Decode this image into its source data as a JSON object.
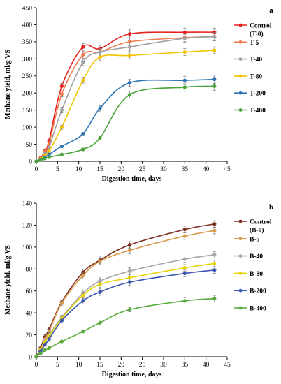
{
  "chart_data": [
    {
      "type": "line",
      "panel_label": "a",
      "xlabel": "Digestion time, days",
      "ylabel": "Methane yield, ml/g VS",
      "xlim": [
        0,
        45
      ],
      "ylim": [
        0,
        450
      ],
      "xticks": [
        0,
        5,
        10,
        15,
        20,
        25,
        30,
        35,
        40,
        45
      ],
      "yticks": [
        0,
        50,
        100,
        150,
        200,
        250,
        300,
        350,
        400,
        450
      ],
      "grid": false,
      "legend_position": "right",
      "series": [
        {
          "name": [
            "Control",
            "(T-0)"
          ],
          "color": "#e8221e",
          "x": [
            0,
            1,
            2,
            3,
            6,
            11,
            15,
            22,
            35,
            42
          ],
          "y": [
            0,
            10,
            30,
            60,
            220,
            335,
            330,
            373,
            378,
            378
          ],
          "err": [
            0,
            2,
            4,
            6,
            8,
            10,
            10,
            12,
            12,
            12
          ]
        },
        {
          "name": [
            "T-5"
          ],
          "color": "#f07a4e",
          "x": [
            0,
            1,
            2,
            3,
            6,
            11,
            15,
            22,
            35,
            42
          ],
          "y": [
            0,
            8,
            28,
            50,
            197,
            312,
            320,
            350,
            362,
            365
          ],
          "err": [
            0,
            2,
            4,
            6,
            8,
            10,
            10,
            12,
            12,
            12
          ]
        },
        {
          "name": [
            "T-40"
          ],
          "color": "#a0a0a0",
          "x": [
            0,
            1,
            2,
            3,
            6,
            11,
            15,
            22,
            35,
            42
          ],
          "y": [
            0,
            7,
            22,
            40,
            150,
            290,
            320,
            335,
            360,
            365
          ],
          "err": [
            0,
            2,
            4,
            5,
            8,
            10,
            10,
            12,
            12,
            12
          ]
        },
        {
          "name": [
            "T-80"
          ],
          "color": "#f5c200",
          "x": [
            0,
            1,
            2,
            3,
            6,
            11,
            15,
            22,
            35,
            42
          ],
          "y": [
            0,
            6,
            18,
            30,
            100,
            237,
            305,
            310,
            320,
            325
          ],
          "err": [
            0,
            2,
            3,
            4,
            6,
            8,
            10,
            10,
            10,
            10
          ]
        },
        {
          "name": [
            "T-200"
          ],
          "color": "#2e75b6",
          "x": [
            0,
            1,
            2,
            3,
            6,
            11,
            15,
            22,
            35,
            42
          ],
          "y": [
            0,
            5,
            12,
            20,
            44,
            80,
            155,
            230,
            237,
            240
          ],
          "err": [
            0,
            1,
            2,
            3,
            4,
            5,
            8,
            10,
            12,
            12
          ]
        },
        {
          "name": [
            "T-400"
          ],
          "color": "#4aa33a",
          "x": [
            0,
            1,
            2,
            3,
            6,
            11,
            15,
            22,
            35,
            42
          ],
          "y": [
            0,
            4,
            8,
            12,
            20,
            35,
            68,
            195,
            217,
            220
          ],
          "err": [
            0,
            1,
            2,
            2,
            3,
            4,
            5,
            10,
            12,
            12
          ]
        }
      ]
    },
    {
      "type": "line",
      "panel_label": "b",
      "xlabel": "Digestion time, days",
      "ylabel": "Methane yield, ml/g VS",
      "xlim": [
        0,
        45
      ],
      "ylim": [
        0,
        140
      ],
      "xticks": [
        0,
        5,
        10,
        15,
        20,
        25,
        30,
        35,
        40,
        45
      ],
      "yticks": [
        0,
        20,
        40,
        60,
        80,
        100,
        120,
        140
      ],
      "grid": false,
      "legend_position": "right",
      "series": [
        {
          "name": [
            "Control",
            "(B-0)"
          ],
          "color": "#7b2c1e",
          "x": [
            0,
            1,
            2,
            3,
            6,
            11,
            15,
            22,
            35,
            42
          ],
          "y": [
            0,
            8,
            18,
            25,
            50,
            77,
            88,
            102,
            116,
            121
          ],
          "err": [
            0,
            1,
            2,
            2,
            2,
            3,
            3,
            3,
            3,
            3
          ]
        },
        {
          "name": [
            "B-5"
          ],
          "color": "#d99a4e",
          "x": [
            0,
            1,
            2,
            3,
            6,
            11,
            15,
            22,
            35,
            42
          ],
          "y": [
            0,
            7,
            16,
            23,
            49,
            74,
            87,
            97,
            110,
            115
          ],
          "err": [
            0,
            1,
            2,
            2,
            2,
            3,
            3,
            3,
            3,
            3
          ]
        },
        {
          "name": [
            "B-40"
          ],
          "color": "#a6a6a6",
          "x": [
            0,
            1,
            2,
            3,
            6,
            11,
            15,
            22,
            35,
            42
          ],
          "y": [
            0,
            6,
            14,
            20,
            36,
            58,
            69,
            78,
            89,
            93
          ],
          "err": [
            0,
            1,
            1,
            2,
            2,
            3,
            3,
            3,
            3,
            3
          ]
        },
        {
          "name": [
            "B-80"
          ],
          "color": "#e6d400",
          "x": [
            0,
            1,
            2,
            3,
            6,
            11,
            15,
            22,
            35,
            42
          ],
          "y": [
            0,
            6,
            13,
            19,
            35,
            56,
            66,
            72,
            81,
            85
          ],
          "err": [
            0,
            1,
            1,
            2,
            2,
            3,
            3,
            3,
            3,
            3
          ]
        },
        {
          "name": [
            "B-200"
          ],
          "color": "#3a56b0",
          "x": [
            0,
            1,
            2,
            3,
            6,
            11,
            15,
            22,
            35,
            42
          ],
          "y": [
            0,
            5,
            11,
            16,
            33,
            51,
            59,
            68,
            76,
            79
          ],
          "err": [
            0,
            1,
            1,
            2,
            2,
            3,
            3,
            3,
            3,
            3
          ]
        },
        {
          "name": [
            "B-400"
          ],
          "color": "#5aab3c",
          "x": [
            0,
            1,
            2,
            3,
            6,
            11,
            15,
            22,
            35,
            42
          ],
          "y": [
            0,
            3,
            6,
            8,
            14,
            23,
            31,
            43,
            51,
            53
          ],
          "err": [
            0,
            1,
            1,
            1,
            1,
            1,
            1,
            2,
            3,
            3
          ]
        }
      ]
    }
  ]
}
